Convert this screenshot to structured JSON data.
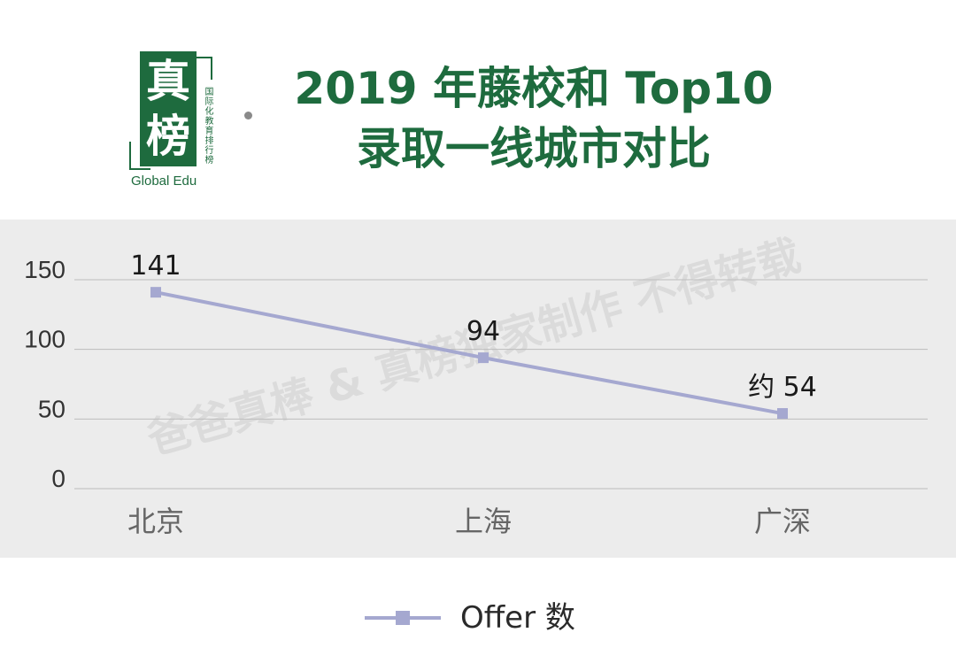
{
  "header": {
    "logo": {
      "char1": "真",
      "char2": "榜",
      "tagline": "国际化教育排行榜",
      "sub": "Global Edu"
    },
    "title_line1": "2019 年藤校和 Top10",
    "title_line2": "录取一线城市对比"
  },
  "watermark": "爸爸真棒 & 真榜独家制作 不得转载",
  "chart_data": {
    "type": "line",
    "categories": [
      "北京",
      "上海",
      "广深"
    ],
    "series": [
      {
        "name": "Offer 数",
        "values": [
          141,
          94,
          54
        ],
        "data_labels": [
          "141",
          "94",
          "约 54"
        ],
        "color": "#a5a8d0"
      }
    ],
    "ylim": [
      0,
      150
    ],
    "yticks": [
      0,
      50,
      100,
      150
    ],
    "grid": true,
    "legend_position": "bottom",
    "colors": {
      "axis_label": "#666666",
      "gridline": "#bdbdbd",
      "panel_bg": "#ececec",
      "data_label": "#1a1a1a"
    }
  },
  "legend": {
    "label": "Offer 数"
  },
  "colors": {
    "brand_green": "#1e6b3e"
  }
}
